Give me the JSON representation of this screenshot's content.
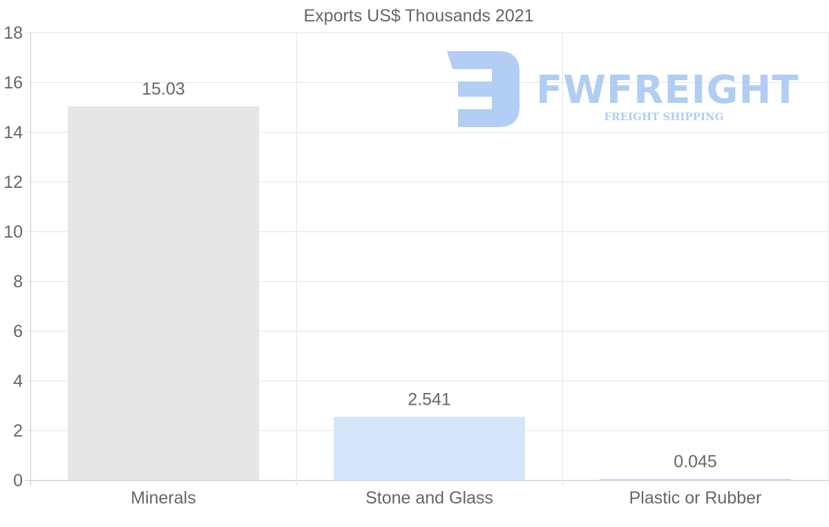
{
  "chart_data": {
    "type": "bar",
    "title": "Exports US$ Thousands 2021",
    "categories": [
      "Minerals",
      "Stone and Glass",
      "Plastic or Rubber"
    ],
    "values": [
      15.03,
      2.541,
      0.045
    ],
    "value_labels": [
      "15.03",
      "2.541",
      "0.045"
    ],
    "bar_colors": [
      "#e6e6e6",
      "#d6e6fa",
      "#c9dcee"
    ],
    "xlabel": "",
    "ylabel": "",
    "ylim": [
      0,
      18
    ],
    "yticks": [
      0,
      2,
      4,
      6,
      8,
      10,
      12,
      14,
      16,
      18
    ],
    "grid": true,
    "legend": "none"
  },
  "watermark": {
    "brand": "FWFREIGHT",
    "tagline": "FREIGHT SHIPPING",
    "color": "#aecbf3"
  }
}
